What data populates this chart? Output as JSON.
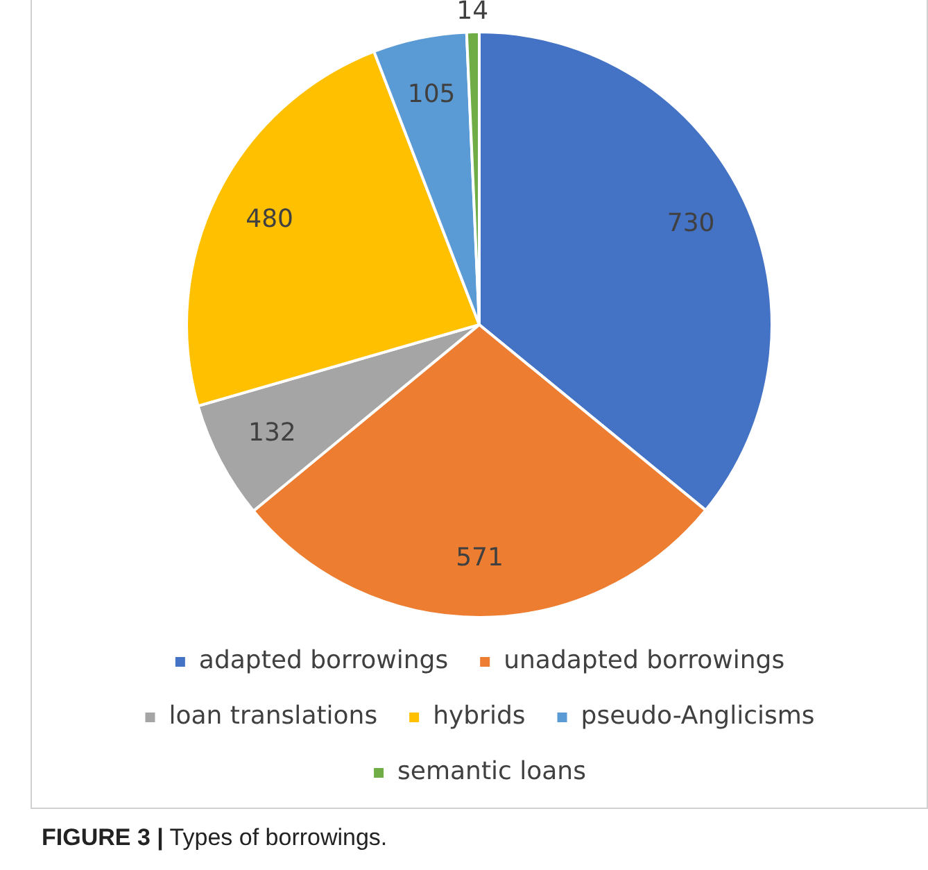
{
  "chart_data": {
    "type": "pie",
    "categories": [
      "adapted borrowings",
      "unadapted borrowings",
      "loan translations",
      "hybrids",
      "pseudo-Anglicisms",
      "semantic loans"
    ],
    "values": [
      730,
      571,
      132,
      480,
      105,
      14
    ],
    "colors": [
      "#4472c4",
      "#ed7d31",
      "#a5a5a5",
      "#ffc000",
      "#5b9bd5",
      "#70ad47"
    ],
    "data_labels": true,
    "legend": "bottom",
    "annotations": [
      "FIGURE 3 |",
      "Types of borrowings."
    ]
  }
}
